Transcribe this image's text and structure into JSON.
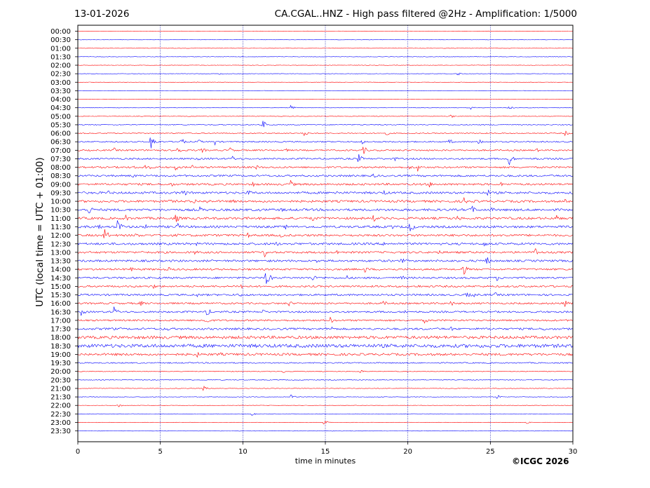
{
  "header": {
    "date": "13-01-2026",
    "title": "CA.CGAL..HNZ - High pass filtered @2Hz - Amplification: 1/5000"
  },
  "footer": {
    "copyright": "©ICGC 2026"
  },
  "colors": {
    "red_trace": "#ff0000",
    "blue_trace": "#0000ff",
    "grid": "#0000aa",
    "frame": "#000000"
  },
  "chart_data": {
    "type": "line",
    "title": "CA.CGAL..HNZ - High pass filtered @2Hz - Amplification: 1/5000",
    "xlabel": "time in minutes",
    "ylabel": "UTC (local time = UTC + 01:00)",
    "xlim": [
      0,
      30
    ],
    "x_ticks": [
      "0",
      "5",
      "10",
      "15",
      "20",
      "25",
      "30"
    ],
    "vertical_gridlines_minutes": [
      5,
      10,
      15,
      20,
      25
    ],
    "y_ticks": [
      "00:00",
      "00:30",
      "01:00",
      "01:30",
      "02:00",
      "02:30",
      "03:00",
      "03:30",
      "04:00",
      "04:30",
      "05:00",
      "05:30",
      "06:00",
      "06:30",
      "07:00",
      "07:30",
      "08:00",
      "08:30",
      "09:00",
      "09:30",
      "10:00",
      "10:30",
      "11:00",
      "11:30",
      "12:00",
      "12:30",
      "13:00",
      "13:30",
      "14:00",
      "14:30",
      "15:00",
      "15:30",
      "16:00",
      "16:30",
      "17:00",
      "17:30",
      "18:00",
      "18:30",
      "19:00",
      "19:30",
      "20:00",
      "20:30",
      "21:00",
      "21:30",
      "22:00",
      "22:30",
      "23:00",
      "23:30"
    ],
    "trace_color_pattern": "alternating red / blue per row, starting red at 00:00",
    "noise_levels": [
      0.3,
      0.3,
      0.3,
      0.3,
      0.3,
      0.3,
      0.3,
      0.3,
      0.3,
      0.3,
      0.4,
      0.6,
      0.7,
      0.9,
      1.0,
      1.1,
      1.2,
      1.3,
      1.4,
      1.5,
      1.5,
      1.6,
      1.6,
      1.6,
      1.5,
      1.5,
      1.4,
      1.4,
      1.3,
      1.3,
      1.3,
      1.3,
      1.2,
      1.2,
      1.2,
      1.4,
      2.0,
      2.4,
      1.6,
      0.8,
      0.5,
      0.5,
      0.4,
      0.4,
      0.3,
      0.3,
      0.3,
      0.3
    ],
    "events": [
      {
        "row": 5,
        "minute": 8.5,
        "amplitude": 2
      },
      {
        "row": 5,
        "minute": 23.0,
        "amplitude": 3
      },
      {
        "row": 6,
        "minute": 7.0,
        "amplitude": 2
      },
      {
        "row": 9,
        "minute": 12.9,
        "amplitude": 4
      },
      {
        "row": 9,
        "minute": 23.8,
        "amplitude": 3
      },
      {
        "row": 9,
        "minute": 26.1,
        "amplitude": 6
      },
      {
        "row": 10,
        "minute": 22.5,
        "amplitude": 5
      },
      {
        "row": 11,
        "minute": 11.2,
        "amplitude": 7
      },
      {
        "row": 12,
        "minute": 13.7,
        "amplitude": 5
      },
      {
        "row": 12,
        "minute": 18.6,
        "amplitude": 5
      },
      {
        "row": 12,
        "minute": 29.5,
        "amplitude": 5
      },
      {
        "row": 13,
        "minute": 4.4,
        "amplitude": 14
      },
      {
        "row": 13,
        "minute": 6.2,
        "amplitude": 9
      },
      {
        "row": 13,
        "minute": 7.3,
        "amplitude": 4
      },
      {
        "row": 13,
        "minute": 8.3,
        "amplitude": 5
      },
      {
        "row": 13,
        "minute": 17.2,
        "amplitude": 4
      },
      {
        "row": 13,
        "minute": 22.5,
        "amplitude": 5
      },
      {
        "row": 13,
        "minute": 24.3,
        "amplitude": 6
      },
      {
        "row": 14,
        "minute": 2.2,
        "amplitude": 4
      },
      {
        "row": 14,
        "minute": 4.6,
        "amplitude": 4
      },
      {
        "row": 14,
        "minute": 6.0,
        "amplitude": 8
      },
      {
        "row": 14,
        "minute": 7.5,
        "amplitude": 5
      },
      {
        "row": 14,
        "minute": 9.2,
        "amplitude": 5
      },
      {
        "row": 14,
        "minute": 12.6,
        "amplitude": 3
      },
      {
        "row": 14,
        "minute": 17.3,
        "amplitude": 7
      },
      {
        "row": 14,
        "minute": 27.8,
        "amplitude": 3
      },
      {
        "row": 15,
        "minute": 7.2,
        "amplitude": 4
      },
      {
        "row": 15,
        "minute": 8.0,
        "amplitude": 3
      },
      {
        "row": 15,
        "minute": 9.3,
        "amplitude": 6
      },
      {
        "row": 15,
        "minute": 17.0,
        "amplitude": 8
      },
      {
        "row": 15,
        "minute": 19.2,
        "amplitude": 4
      },
      {
        "row": 15,
        "minute": 26.1,
        "amplitude": 12
      },
      {
        "row": 15,
        "minute": 27.7,
        "amplitude": 3
      },
      {
        "row": 16,
        "minute": 3.4,
        "amplitude": 3
      },
      {
        "row": 16,
        "minute": 4.1,
        "amplitude": 9
      },
      {
        "row": 16,
        "minute": 5.9,
        "amplitude": 6
      },
      {
        "row": 16,
        "minute": 6.9,
        "amplitude": 4
      },
      {
        "row": 16,
        "minute": 10.8,
        "amplitude": 4
      },
      {
        "row": 16,
        "minute": 20.1,
        "amplitude": 4
      },
      {
        "row": 16,
        "minute": 20.6,
        "amplitude": 6
      },
      {
        "row": 17,
        "minute": 3.3,
        "amplitude": 4
      },
      {
        "row": 17,
        "minute": 17.9,
        "amplitude": 4
      },
      {
        "row": 18,
        "minute": 5.6,
        "amplitude": 5
      },
      {
        "row": 18,
        "minute": 10.6,
        "amplitude": 4
      },
      {
        "row": 18,
        "minute": 12.9,
        "amplitude": 6
      },
      {
        "row": 18,
        "minute": 21.3,
        "amplitude": 5
      },
      {
        "row": 18,
        "minute": 25.6,
        "amplitude": 4
      },
      {
        "row": 19,
        "minute": 1.8,
        "amplitude": 4
      },
      {
        "row": 19,
        "minute": 6.3,
        "amplitude": 10
      },
      {
        "row": 19,
        "minute": 10.3,
        "amplitude": 6
      },
      {
        "row": 19,
        "minute": 15.6,
        "amplitude": 5
      },
      {
        "row": 19,
        "minute": 18.5,
        "amplitude": 6
      },
      {
        "row": 19,
        "minute": 24.8,
        "amplitude": 6
      },
      {
        "row": 20,
        "minute": 5.5,
        "amplitude": 5
      },
      {
        "row": 20,
        "minute": 7.0,
        "amplitude": 6
      },
      {
        "row": 20,
        "minute": 7.8,
        "amplitude": 5
      },
      {
        "row": 20,
        "minute": 9.4,
        "amplitude": 4
      },
      {
        "row": 20,
        "minute": 23.4,
        "amplitude": 6
      },
      {
        "row": 20,
        "minute": 29.4,
        "amplitude": 6
      },
      {
        "row": 21,
        "minute": 0.6,
        "amplitude": 11
      },
      {
        "row": 21,
        "minute": 7.4,
        "amplitude": 5
      },
      {
        "row": 21,
        "minute": 10.9,
        "amplitude": 4
      },
      {
        "row": 21,
        "minute": 12.3,
        "amplitude": 4
      },
      {
        "row": 21,
        "minute": 23.8,
        "amplitude": 10
      },
      {
        "row": 21,
        "minute": 25.1,
        "amplitude": 4
      },
      {
        "row": 22,
        "minute": 2.9,
        "amplitude": 5
      },
      {
        "row": 22,
        "minute": 5.9,
        "amplitude": 9
      },
      {
        "row": 22,
        "minute": 14.2,
        "amplitude": 7
      },
      {
        "row": 22,
        "minute": 17.9,
        "amplitude": 6
      },
      {
        "row": 22,
        "minute": 23.0,
        "amplitude": 5
      },
      {
        "row": 22,
        "minute": 29.0,
        "amplitude": 6
      },
      {
        "row": 23,
        "minute": 1.1,
        "amplitude": 10
      },
      {
        "row": 23,
        "minute": 2.4,
        "amplitude": 14
      },
      {
        "row": 23,
        "minute": 4.1,
        "amplitude": 4
      },
      {
        "row": 23,
        "minute": 6.0,
        "amplitude": 7
      },
      {
        "row": 23,
        "minute": 12.6,
        "amplitude": 4
      },
      {
        "row": 23,
        "minute": 19.0,
        "amplitude": 5
      },
      {
        "row": 23,
        "minute": 20.1,
        "amplitude": 12
      },
      {
        "row": 24,
        "minute": 1.6,
        "amplitude": 12
      },
      {
        "row": 24,
        "minute": 3.5,
        "amplitude": 6
      },
      {
        "row": 24,
        "minute": 6.0,
        "amplitude": 4
      },
      {
        "row": 24,
        "minute": 10.3,
        "amplitude": 4
      },
      {
        "row": 24,
        "minute": 12.3,
        "amplitude": 4
      },
      {
        "row": 24,
        "minute": 26.0,
        "amplitude": 4
      },
      {
        "row": 25,
        "minute": 7.1,
        "amplitude": 4
      },
      {
        "row": 25,
        "minute": 12.0,
        "amplitude": 5
      },
      {
        "row": 25,
        "minute": 18.5,
        "amplitude": 4
      },
      {
        "row": 25,
        "minute": 24.6,
        "amplitude": 6
      },
      {
        "row": 26,
        "minute": 7.1,
        "amplitude": 4
      },
      {
        "row": 26,
        "minute": 11.3,
        "amplitude": 8
      },
      {
        "row": 26,
        "minute": 15.7,
        "amplitude": 4
      },
      {
        "row": 26,
        "minute": 21.8,
        "amplitude": 5
      },
      {
        "row": 26,
        "minute": 27.7,
        "amplitude": 8
      },
      {
        "row": 27,
        "minute": 11.4,
        "amplitude": 5
      },
      {
        "row": 27,
        "minute": 14.5,
        "amplitude": 6
      },
      {
        "row": 27,
        "minute": 19.6,
        "amplitude": 5
      },
      {
        "row": 27,
        "minute": 24.7,
        "amplitude": 10
      },
      {
        "row": 28,
        "minute": 3.2,
        "amplitude": 4
      },
      {
        "row": 28,
        "minute": 5.5,
        "amplitude": 4
      },
      {
        "row": 28,
        "minute": 17.4,
        "amplitude": 6
      },
      {
        "row": 28,
        "minute": 23.3,
        "amplitude": 12
      },
      {
        "row": 29,
        "minute": 11.4,
        "amplitude": 16
      },
      {
        "row": 29,
        "minute": 14.2,
        "amplitude": 6
      },
      {
        "row": 29,
        "minute": 16.3,
        "amplitude": 4
      },
      {
        "row": 29,
        "minute": 19.6,
        "amplitude": 5
      },
      {
        "row": 29,
        "minute": 25.4,
        "amplitude": 5
      },
      {
        "row": 30,
        "minute": 4.6,
        "amplitude": 4
      },
      {
        "row": 30,
        "minute": 9.9,
        "amplitude": 5
      },
      {
        "row": 30,
        "minute": 20.5,
        "amplitude": 5
      },
      {
        "row": 31,
        "minute": 7.2,
        "amplitude": 4
      },
      {
        "row": 31,
        "minute": 9.7,
        "amplitude": 6
      },
      {
        "row": 31,
        "minute": 23.5,
        "amplitude": 7
      },
      {
        "row": 31,
        "minute": 23.9,
        "amplitude": 6
      },
      {
        "row": 31,
        "minute": 25.3,
        "amplitude": 4
      },
      {
        "row": 32,
        "minute": 3.8,
        "amplitude": 5
      },
      {
        "row": 32,
        "minute": 12.8,
        "amplitude": 5
      },
      {
        "row": 32,
        "minute": 18.5,
        "amplitude": 5
      },
      {
        "row": 32,
        "minute": 22.6,
        "amplitude": 5
      },
      {
        "row": 32,
        "minute": 29.5,
        "amplitude": 6
      },
      {
        "row": 33,
        "minute": 0.2,
        "amplitude": 7
      },
      {
        "row": 33,
        "minute": 2.2,
        "amplitude": 9
      },
      {
        "row": 33,
        "minute": 7.8,
        "amplitude": 9
      },
      {
        "row": 33,
        "minute": 11.2,
        "amplitude": 4
      },
      {
        "row": 33,
        "minute": 19.8,
        "amplitude": 4
      },
      {
        "row": 34,
        "minute": 7.7,
        "amplitude": 9
      },
      {
        "row": 34,
        "minute": 15.3,
        "amplitude": 5
      },
      {
        "row": 34,
        "minute": 21.0,
        "amplitude": 5
      },
      {
        "row": 35,
        "minute": 2.1,
        "amplitude": 4
      },
      {
        "row": 35,
        "minute": 5.4,
        "amplitude": 4
      },
      {
        "row": 35,
        "minute": 15.4,
        "amplitude": 4
      },
      {
        "row": 35,
        "minute": 22.6,
        "amplitude": 4
      },
      {
        "row": 35,
        "minute": 28.2,
        "amplitude": 4
      },
      {
        "row": 36,
        "minute": 21.8,
        "amplitude": 3
      },
      {
        "row": 37,
        "minute": 1.0,
        "amplitude": 4
      },
      {
        "row": 38,
        "minute": 7.2,
        "amplitude": 5
      },
      {
        "row": 38,
        "minute": 8.6,
        "amplitude": 4
      },
      {
        "row": 40,
        "minute": 12.4,
        "amplitude": 3
      },
      {
        "row": 40,
        "minute": 17.1,
        "amplitude": 3
      },
      {
        "row": 42,
        "minute": 7.6,
        "amplitude": 4
      },
      {
        "row": 43,
        "minute": 12.9,
        "amplitude": 4
      },
      {
        "row": 43,
        "minute": 25.4,
        "amplitude": 4
      },
      {
        "row": 44,
        "minute": 2.4,
        "amplitude": 5
      },
      {
        "row": 45,
        "minute": 10.5,
        "amplitude": 3
      },
      {
        "row": 46,
        "minute": 14.9,
        "amplitude": 4
      },
      {
        "row": 46,
        "minute": 27.2,
        "amplitude": 2
      }
    ]
  }
}
